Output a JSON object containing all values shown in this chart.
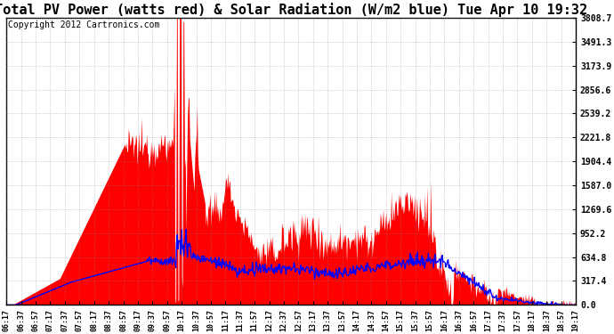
{
  "title": "Total PV Power (watts red) & Solar Radiation (W/m2 blue) Tue Apr 10 19:32",
  "copyright": "Copyright 2012 Cartronics.com",
  "yticks": [
    0.0,
    317.4,
    634.8,
    952.2,
    1269.6,
    1587.0,
    1904.4,
    2221.8,
    2539.2,
    2856.6,
    3173.9,
    3491.3,
    3808.7
  ],
  "ymax": 3808.7,
  "ymin": 0.0,
  "pv_color": "#FF0000",
  "solar_color": "#0000FF",
  "bg_color": "#FFFFFF",
  "grid_color": "#888888",
  "title_fontsize": 11,
  "copyright_fontsize": 7
}
